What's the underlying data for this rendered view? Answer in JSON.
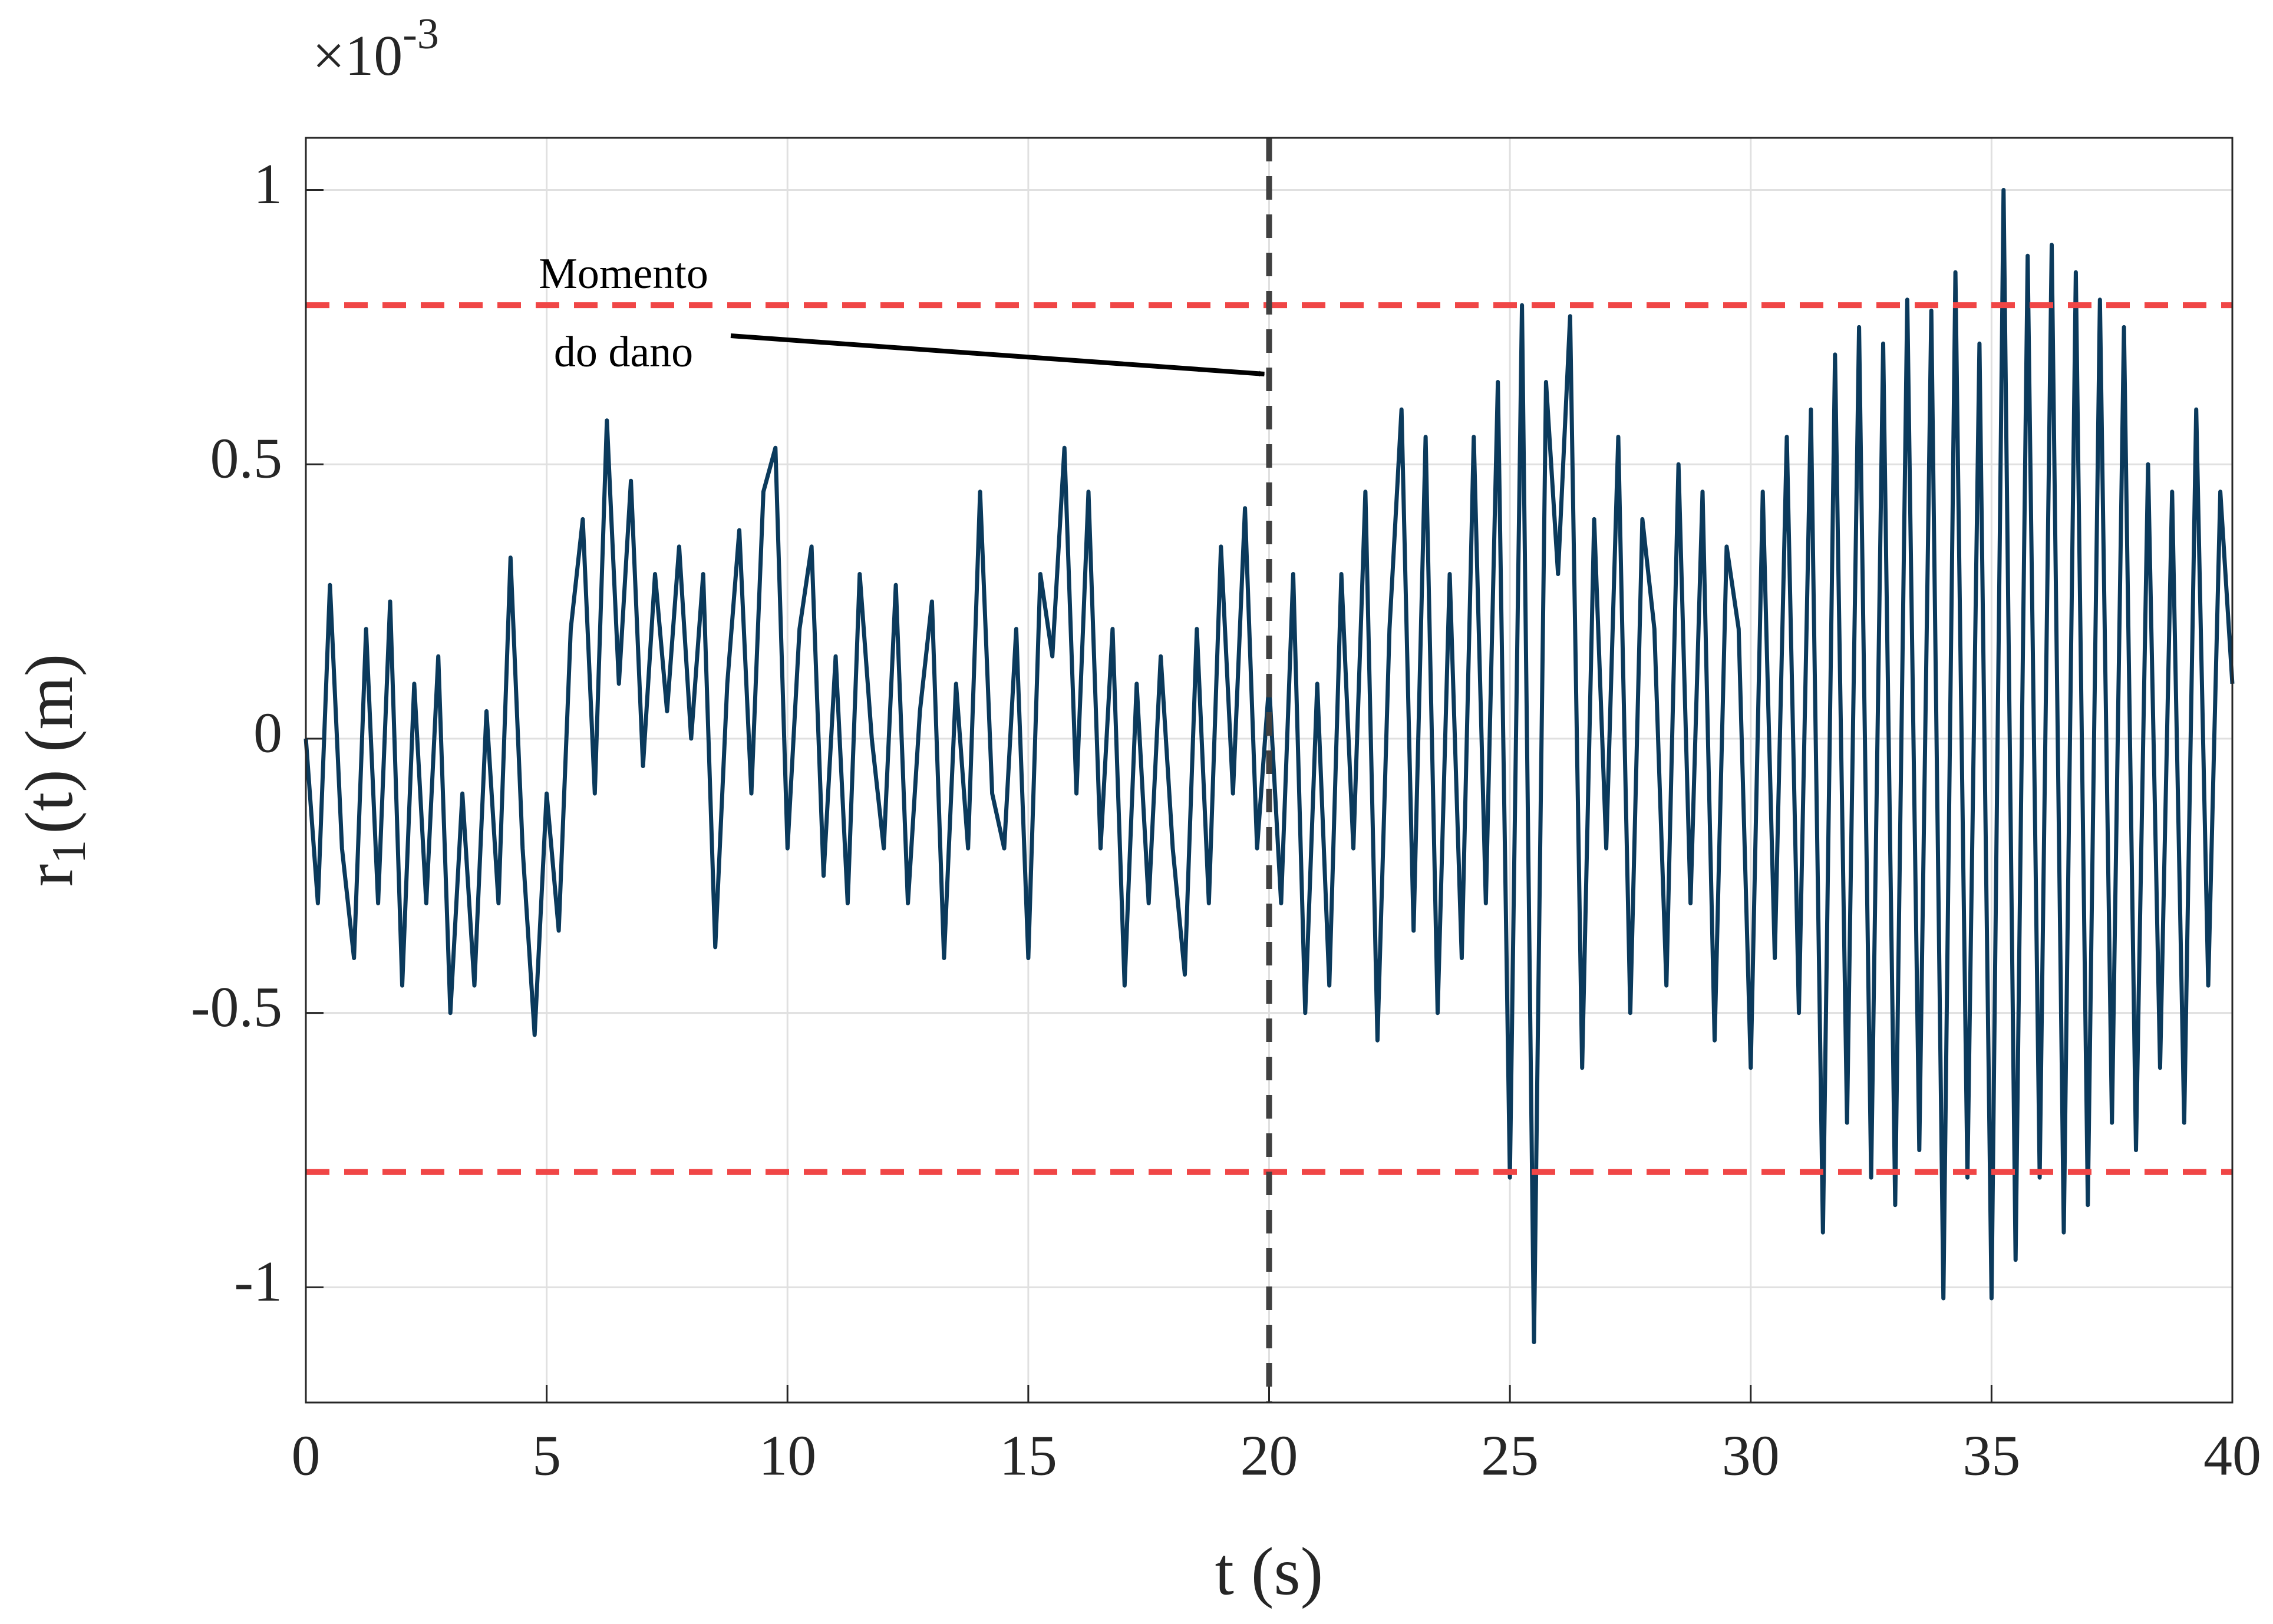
{
  "chart_data": {
    "type": "line",
    "xlabel": "t (s)",
    "ylabel": {
      "text": "r",
      "subscript": "1",
      "rest": "(t) (m)"
    },
    "y_multiplier": {
      "base": "×10",
      "exponent": "-3"
    },
    "annotation": [
      "Momento",
      "do dano"
    ],
    "xlim": [
      0,
      40
    ],
    "xticks": [
      0,
      5,
      10,
      15,
      20,
      25,
      30,
      35,
      40
    ],
    "ylim": [
      -1.21,
      1.095
    ],
    "yticks": [
      -1,
      -0.5,
      0,
      0.5,
      1
    ],
    "grid": true,
    "thresholds": [
      0.79,
      -0.79
    ],
    "threshold_color": "#f04646",
    "damage_time": 20,
    "damage_color": "#404040",
    "x": [
      0,
      0.25,
      0.5,
      0.75,
      1,
      1.25,
      1.5,
      1.75,
      2,
      2.25,
      2.5,
      2.75,
      3,
      3.25,
      3.5,
      3.75,
      4,
      4.25,
      4.5,
      4.75,
      5,
      5.25,
      5.5,
      5.75,
      6,
      6.25,
      6.5,
      6.75,
      7,
      7.25,
      7.5,
      7.75,
      8,
      8.25,
      8.5,
      8.75,
      9,
      9.25,
      9.5,
      9.75,
      10,
      10.25,
      10.5,
      10.75,
      11,
      11.25,
      11.5,
      11.75,
      12,
      12.25,
      12.5,
      12.75,
      13,
      13.25,
      13.5,
      13.75,
      14,
      14.25,
      14.5,
      14.75,
      15,
      15.25,
      15.5,
      15.75,
      16,
      16.25,
      16.5,
      16.75,
      17,
      17.25,
      17.5,
      17.75,
      18,
      18.25,
      18.5,
      18.75,
      19,
      19.25,
      19.5,
      19.75,
      20,
      20.25,
      20.5,
      20.75,
      21,
      21.25,
      21.5,
      21.75,
      22,
      22.25,
      22.5,
      22.75,
      23,
      23.25,
      23.5,
      23.75,
      24,
      24.25,
      24.5,
      24.75,
      25,
      25.25,
      25.5,
      25.75,
      26,
      26.25,
      26.5,
      26.75,
      27,
      27.25,
      27.5,
      27.75,
      28,
      28.25,
      28.5,
      28.75,
      29,
      29.25,
      29.5,
      29.75,
      30,
      30.25,
      30.5,
      30.75,
      31,
      31.25,
      31.5,
      31.75,
      32,
      32.25,
      32.5,
      32.75,
      33,
      33.25,
      33.5,
      33.75,
      34,
      34.25,
      34.5,
      34.75,
      35,
      35.25,
      35.5,
      35.75,
      36,
      36.25,
      36.5,
      36.75,
      37,
      37.25,
      37.5,
      37.75,
      38,
      38.25,
      38.5,
      38.75,
      39,
      39.25,
      39.5,
      39.75,
      40
    ],
    "series": [
      {
        "color": "#0b3a5c",
        "values": [
          0,
          -0.3,
          0.28,
          -0.2,
          -0.4,
          0.2,
          -0.3,
          0.25,
          -0.45,
          0.1,
          -0.3,
          0.15,
          -0.5,
          -0.1,
          -0.45,
          0.05,
          -0.3,
          0.33,
          -0.2,
          -0.54,
          -0.1,
          -0.35,
          0.2,
          0.4,
          -0.1,
          0.58,
          0.1,
          0.47,
          -0.05,
          0.3,
          0.05,
          0.35,
          0,
          0.3,
          -0.38,
          0.1,
          0.38,
          -0.1,
          0.45,
          0.53,
          -0.2,
          0.2,
          0.35,
          -0.25,
          0.15,
          -0.3,
          0.3,
          0,
          -0.2,
          0.28,
          -0.3,
          0.05,
          0.25,
          -0.4,
          0.1,
          -0.2,
          0.45,
          -0.1,
          -0.2,
          0.2,
          -0.4,
          0.3,
          0.15,
          0.53,
          -0.1,
          0.45,
          -0.2,
          0.2,
          -0.45,
          0.1,
          -0.3,
          0.15,
          -0.2,
          -0.43,
          0.2,
          -0.3,
          0.35,
          -0.1,
          0.42,
          -0.2,
          0.1,
          -0.3,
          0.3,
          -0.5,
          0.1,
          -0.45,
          0.3,
          -0.2,
          0.45,
          -0.55,
          0.2,
          0.6,
          -0.35,
          0.55,
          -0.5,
          0.3,
          -0.4,
          0.55,
          -0.3,
          0.65,
          -0.8,
          0.79,
          -1.1,
          0.65,
          0.3,
          0.77,
          -0.6,
          0.4,
          -0.2,
          0.55,
          -0.5,
          0.4,
          0.2,
          -0.45,
          0.5,
          -0.3,
          0.45,
          -0.55,
          0.35,
          0.2,
          -0.6,
          0.45,
          -0.4,
          0.55,
          -0.5,
          0.6,
          -0.9,
          0.7,
          -0.7,
          0.75,
          -0.8,
          0.72,
          -0.85,
          0.8,
          -0.75,
          0.78,
          -1.02,
          0.85,
          -0.8,
          0.72,
          -1.02,
          1,
          -0.95,
          0.88,
          -0.8,
          0.9,
          -0.9,
          0.85,
          -0.85,
          0.8,
          -0.7,
          0.75,
          -0.75,
          0.5,
          -0.6,
          0.45,
          -0.7,
          0.6,
          -0.45,
          0.45,
          0.1
        ]
      }
    ]
  }
}
